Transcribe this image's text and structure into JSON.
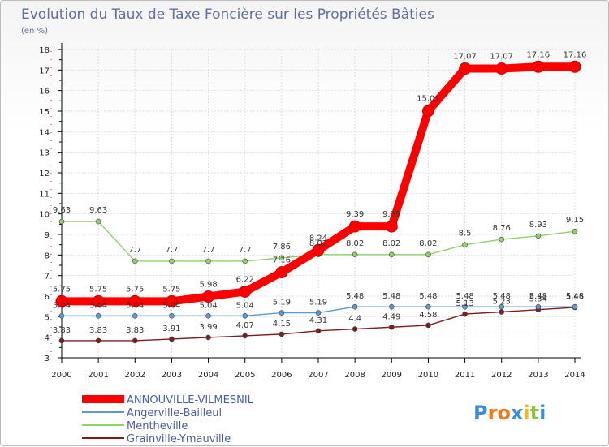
{
  "chart_data": {
    "type": "line",
    "title": "Evolution du Taux de Taxe Foncière sur les Propriétés Bâties",
    "subtitle": "(en %)",
    "x": [
      "2000",
      "2001",
      "2002",
      "2003",
      "2004",
      "2005",
      "2006",
      "2007",
      "2008",
      "2009",
      "2010",
      "2011",
      "2012",
      "2013",
      "2014"
    ],
    "ylim": [
      3,
      18
    ],
    "yticks": [
      "3",
      "4",
      "5",
      "6",
      "7",
      "8",
      "9",
      "10",
      "11",
      "12",
      "13",
      "14",
      "15",
      "16",
      "17",
      "18"
    ],
    "series": [
      {
        "name": "ANNOUVILLE-VILMESNIL",
        "color": "#ff0000",
        "values": [
          5.75,
          5.75,
          5.75,
          5.75,
          5.98,
          6.22,
          7.16,
          8.24,
          9.39,
          9.39,
          15.01,
          17.07,
          17.07,
          17.16,
          17.16
        ],
        "labels": [
          "5.75",
          "5.75",
          "5.75",
          "5.75",
          "5.98",
          "6.22",
          "7.16",
          "8.24",
          "9.39",
          "9.39",
          "15.01",
          "17.07",
          "17.07",
          "17.16",
          "17.16"
        ]
      },
      {
        "name": "Angerville-Bailleul",
        "color": "#5b9bd5",
        "values": [
          5.04,
          5.04,
          5.04,
          5.04,
          5.04,
          5.04,
          5.19,
          5.19,
          5.48,
          5.48,
          5.48,
          5.48,
          5.48,
          5.48,
          5.48
        ],
        "labels": [
          "5.04",
          "5.04",
          "5.04",
          "5.04",
          "5.04",
          "5.04",
          "5.19",
          "5.19",
          "5.48",
          "5.48",
          "5.48",
          "5.48",
          "5.48",
          "5.48",
          "5.48"
        ]
      },
      {
        "name": "Mentheville",
        "color": "#8fd16a",
        "values": [
          9.63,
          9.63,
          7.7,
          7.7,
          7.7,
          7.7,
          7.86,
          8.02,
          8.02,
          8.02,
          8.02,
          8.5,
          8.76,
          8.93,
          9.15
        ],
        "labels": [
          "9.63",
          "9.63",
          "7.7",
          "7.7",
          "7.7",
          "7.7",
          "7.86",
          "8.02",
          "8.02",
          "8.02",
          "8.02",
          "8.5",
          "8.76",
          "8.93",
          "9.15"
        ]
      },
      {
        "name": "Grainville-Ymauville",
        "color": "#7a1f1f",
        "values": [
          3.83,
          3.83,
          3.83,
          3.91,
          3.99,
          4.07,
          4.15,
          4.31,
          4.4,
          4.49,
          4.58,
          5.13,
          5.23,
          5.34,
          5.45
        ],
        "labels": [
          "3.83",
          "3.83",
          "3.83",
          "3.91",
          "3.99",
          "4.07",
          "4.15",
          "4.31",
          "4.4",
          "4.49",
          "4.58",
          "5.13",
          "5.23",
          "5.34",
          "5.45"
        ]
      }
    ],
    "legend": "bottom-left",
    "grid": true
  },
  "brand": {
    "logo_text": "Proxiti",
    "letters": [
      "P",
      "r",
      "o",
      "x",
      "i",
      "t",
      "i"
    ],
    "letter_colors": [
      "#3a8fd8",
      "#ee7a1f",
      "#ee7a1f",
      "#3a8fd8",
      "#f5b81c",
      "#8cc63f",
      "#3a8fd8"
    ]
  }
}
